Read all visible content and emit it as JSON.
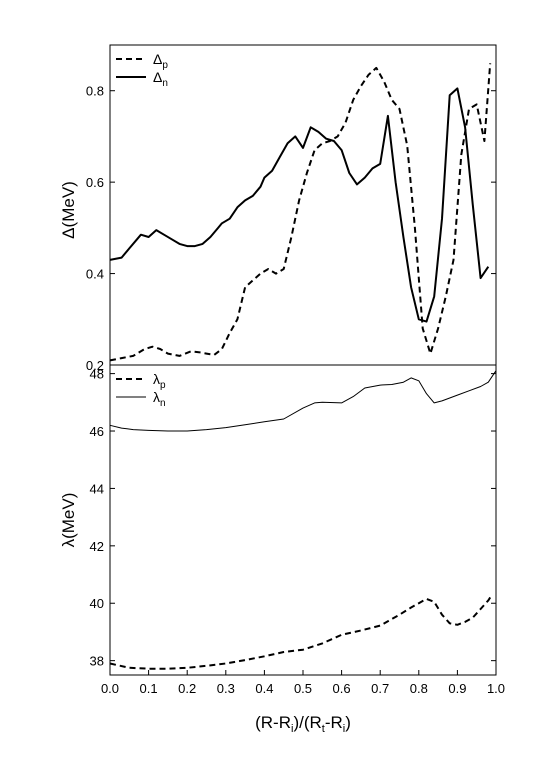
{
  "chart_data": [
    {
      "type": "line",
      "panel": "top",
      "ylabel_main": "Δ",
      "ylabel_unit": "(MeV)",
      "ylim": [
        0.2,
        0.9
      ],
      "yticks": [
        0.2,
        0.4,
        0.6,
        0.8
      ],
      "ytick_labels": [
        "0.2",
        "0.4",
        "0.6",
        "0.8"
      ],
      "xlim": [
        0,
        1
      ],
      "legend_position": "top-left",
      "series": [
        {
          "name": "Δp",
          "name_main": "Δ",
          "name_sub": "p",
          "style": "dashed",
          "x": [
            0.0,
            0.03,
            0.06,
            0.09,
            0.11,
            0.13,
            0.15,
            0.18,
            0.21,
            0.23,
            0.25,
            0.27,
            0.29,
            0.31,
            0.33,
            0.35,
            0.37,
            0.39,
            0.41,
            0.43,
            0.45,
            0.47,
            0.49,
            0.51,
            0.53,
            0.55,
            0.57,
            0.59,
            0.61,
            0.63,
            0.65,
            0.67,
            0.69,
            0.71,
            0.73,
            0.75,
            0.77,
            0.79,
            0.81,
            0.83,
            0.85,
            0.87,
            0.89,
            0.91,
            0.93,
            0.95,
            0.97,
            0.985
          ],
          "y": [
            0.21,
            0.215,
            0.22,
            0.235,
            0.24,
            0.235,
            0.225,
            0.22,
            0.23,
            0.228,
            0.225,
            0.222,
            0.235,
            0.27,
            0.3,
            0.37,
            0.385,
            0.4,
            0.41,
            0.4,
            0.41,
            0.48,
            0.56,
            0.62,
            0.67,
            0.685,
            0.69,
            0.7,
            0.73,
            0.78,
            0.81,
            0.835,
            0.85,
            0.82,
            0.78,
            0.76,
            0.68,
            0.5,
            0.28,
            0.225,
            0.28,
            0.35,
            0.43,
            0.66,
            0.76,
            0.77,
            0.69,
            0.86
          ]
        },
        {
          "name": "Δn",
          "name_main": "Δ",
          "name_sub": "n",
          "style": "solid",
          "x": [
            0.0,
            0.03,
            0.05,
            0.07,
            0.08,
            0.1,
            0.12,
            0.14,
            0.16,
            0.18,
            0.2,
            0.22,
            0.24,
            0.26,
            0.28,
            0.29,
            0.31,
            0.33,
            0.35,
            0.37,
            0.39,
            0.4,
            0.42,
            0.44,
            0.46,
            0.48,
            0.5,
            0.52,
            0.54,
            0.56,
            0.58,
            0.6,
            0.62,
            0.64,
            0.66,
            0.68,
            0.7,
            0.72,
            0.74,
            0.76,
            0.78,
            0.8,
            0.82,
            0.84,
            0.86,
            0.88,
            0.9,
            0.92,
            0.94,
            0.96,
            0.98
          ],
          "y": [
            0.43,
            0.435,
            0.455,
            0.475,
            0.485,
            0.48,
            0.495,
            0.485,
            0.475,
            0.465,
            0.46,
            0.46,
            0.465,
            0.48,
            0.5,
            0.51,
            0.52,
            0.545,
            0.56,
            0.57,
            0.59,
            0.61,
            0.625,
            0.655,
            0.685,
            0.7,
            0.675,
            0.72,
            0.71,
            0.695,
            0.69,
            0.67,
            0.62,
            0.595,
            0.61,
            0.63,
            0.64,
            0.745,
            0.6,
            0.48,
            0.37,
            0.3,
            0.295,
            0.35,
            0.52,
            0.79,
            0.805,
            0.72,
            0.55,
            0.39,
            0.415
          ]
        }
      ]
    },
    {
      "type": "line",
      "panel": "bottom",
      "ylabel_main": "λ",
      "ylabel_unit": "(MeV)",
      "xlabel": "(R-Ri)/(Rt-Ri)",
      "ylim": [
        37.5,
        48.3
      ],
      "yticks": [
        38,
        40,
        42,
        44,
        46,
        48
      ],
      "ytick_labels": [
        "38",
        "40",
        "42",
        "44",
        "46",
        "48"
      ],
      "xlim": [
        0,
        1
      ],
      "xticks": [
        0,
        0.1,
        0.2,
        0.3,
        0.4,
        0.5,
        0.6,
        0.7,
        0.8,
        0.9,
        1.0
      ],
      "xtick_labels": [
        "0.0",
        "0.1",
        "0.2",
        "0.3",
        "0.4",
        "0.5",
        "0.6",
        "0.7",
        "0.8",
        "0.9",
        "1.0"
      ],
      "legend_position": "top-left",
      "series": [
        {
          "name": "λp",
          "name_main": "λ",
          "name_sub": "p",
          "style": "dashed",
          "x": [
            0.0,
            0.05,
            0.1,
            0.15,
            0.2,
            0.25,
            0.3,
            0.35,
            0.4,
            0.45,
            0.5,
            0.55,
            0.6,
            0.65,
            0.7,
            0.75,
            0.78,
            0.8,
            0.82,
            0.84,
            0.86,
            0.88,
            0.9,
            0.92,
            0.94,
            0.96,
            0.98,
            0.99
          ],
          "y": [
            37.9,
            37.75,
            37.72,
            37.72,
            37.75,
            37.82,
            37.9,
            38.02,
            38.15,
            38.3,
            38.38,
            38.6,
            38.9,
            39.05,
            39.22,
            39.6,
            39.85,
            40.0,
            40.15,
            40.05,
            39.6,
            39.3,
            39.25,
            39.35,
            39.5,
            39.8,
            40.1,
            40.3
          ]
        },
        {
          "name": "λn",
          "name_main": "λ",
          "name_sub": "n",
          "style": "thin-solid",
          "x": [
            0.0,
            0.03,
            0.06,
            0.1,
            0.15,
            0.2,
            0.25,
            0.3,
            0.35,
            0.4,
            0.45,
            0.5,
            0.53,
            0.55,
            0.6,
            0.63,
            0.66,
            0.7,
            0.73,
            0.76,
            0.78,
            0.8,
            0.82,
            0.84,
            0.86,
            0.88,
            0.9,
            0.93,
            0.96,
            0.98,
            1.0
          ],
          "y": [
            46.2,
            46.1,
            46.05,
            46.02,
            46.0,
            46.0,
            46.05,
            46.12,
            46.22,
            46.32,
            46.42,
            46.8,
            46.98,
            47.0,
            46.98,
            47.2,
            47.5,
            47.6,
            47.62,
            47.7,
            47.85,
            47.75,
            47.3,
            46.98,
            47.05,
            47.15,
            47.25,
            47.4,
            47.55,
            47.7,
            48.1
          ]
        }
      ]
    }
  ]
}
